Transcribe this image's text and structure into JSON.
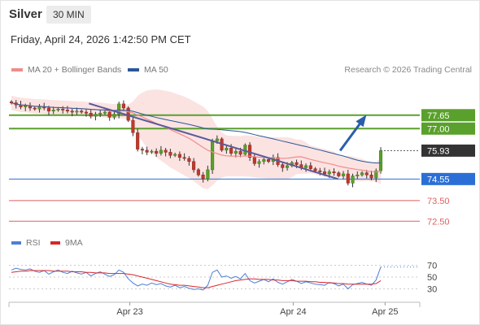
{
  "header": {
    "instrument": "Silver",
    "timeframe": "30 MIN",
    "datetime": "Friday, April 24, 2026 1:42:50 PM CET"
  },
  "legend": {
    "ma20": {
      "label": "MA 20 + Bollinger Bands",
      "color": "#f08c8c"
    },
    "ma50": {
      "label": "MA 50",
      "color": "#2b5797"
    },
    "credit": "Research © 2026 Trading Central"
  },
  "chart_data": [
    {
      "type": "candlestick",
      "ylim": [
        71.8,
        79.3
      ],
      "x_ticks": [
        "Apr 23",
        "Apr 24",
        "Apr 25"
      ],
      "price_levels": [
        {
          "label": "77.65",
          "value": 77.65,
          "style": "resistance",
          "color": "#5aa02c"
        },
        {
          "label": "77.00",
          "value": 77.0,
          "style": "resistance",
          "color": "#5aa02c"
        },
        {
          "label": "75.93",
          "value": 75.93,
          "style": "last",
          "color": "#333333"
        },
        {
          "label": "74.55",
          "value": 74.55,
          "style": "pivot",
          "color": "#2b6fd6"
        },
        {
          "label": "73.50",
          "value": 73.5,
          "style": "support",
          "color": "#e06060"
        },
        {
          "label": "72.50",
          "value": 72.5,
          "style": "support",
          "color": "#e06060"
        }
      ],
      "trendline": {
        "from": [
          0.19,
          78.22
        ],
        "to": [
          0.8,
          74.55
        ]
      },
      "forecast_arrow": {
        "from": [
          0.805,
          75.93
        ],
        "to": [
          0.865,
          77.55
        ]
      },
      "series": [
        {
          "indicator": "ma20",
          "color": "#f08c8c"
        },
        {
          "indicator": "ma50",
          "color": "#2b5797"
        }
      ],
      "close": [
        78.25,
        78.15,
        78.05,
        78.1,
        78.0,
        77.95,
        78.05,
        78.0,
        77.85,
        77.9,
        77.95,
        77.9,
        77.85,
        77.8,
        77.85,
        77.8,
        77.75,
        77.6,
        77.7,
        77.75,
        77.8,
        77.55,
        77.7,
        78.2,
        78.0,
        77.4,
        76.8,
        76.0,
        75.95,
        75.85,
        75.9,
        75.8,
        75.95,
        75.85,
        75.7,
        75.75,
        75.6,
        75.55,
        75.4,
        75.0,
        74.75,
        74.55,
        75.0,
        76.4,
        76.5,
        75.95,
        76.05,
        75.8,
        75.9,
        75.75,
        76.2,
        75.6,
        75.3,
        75.4,
        75.5,
        75.4,
        75.6,
        75.25,
        75.1,
        75.2,
        75.35,
        75.25,
        75.1,
        75.2,
        75.05,
        74.95,
        74.9,
        74.8,
        74.9,
        74.85,
        74.7,
        74.8,
        74.35,
        74.7,
        74.75,
        74.85,
        74.75,
        74.6,
        74.95,
        75.93
      ]
    },
    {
      "type": "line",
      "title": "RSI",
      "ylim": [
        10,
        90
      ],
      "y_ticks": [
        70,
        50,
        30
      ],
      "series": [
        {
          "name": "RSI",
          "color": "#4d7fd6",
          "values": [
            62,
            65,
            63,
            62,
            64,
            60,
            58,
            61,
            55,
            59,
            62,
            58,
            56,
            60,
            57,
            55,
            58,
            52,
            56,
            59,
            55,
            51,
            54,
            62,
            58,
            47,
            40,
            35,
            38,
            36,
            40,
            37,
            39,
            35,
            33,
            36,
            32,
            34,
            31,
            29,
            30,
            28,
            36,
            58,
            62,
            50,
            52,
            48,
            51,
            47,
            56,
            44,
            40,
            43,
            46,
            42,
            47,
            41,
            38,
            42,
            46,
            43,
            39,
            42,
            40,
            38,
            37,
            36,
            41,
            39,
            35,
            38,
            30,
            37,
            39,
            41,
            38,
            36,
            45,
            67
          ]
        },
        {
          "name": "9MA",
          "color": "#d9262c",
          "values": [
            58,
            59,
            60,
            60,
            61,
            61,
            61,
            61,
            61,
            60,
            60,
            60,
            60,
            59,
            59,
            59,
            58,
            58,
            57,
            57,
            57,
            56,
            56,
            56,
            56,
            55,
            54,
            52,
            50,
            48,
            46,
            44,
            42,
            40,
            38,
            37,
            36,
            36,
            35,
            34,
            33,
            32,
            32,
            34,
            36,
            38,
            40,
            42,
            44,
            45,
            46,
            47,
            47,
            46,
            46,
            46,
            45,
            45,
            44,
            44,
            44,
            43,
            43,
            43,
            42,
            42,
            41,
            41,
            40,
            40,
            39,
            39,
            38,
            38,
            38,
            38,
            38,
            38,
            39,
            44
          ]
        }
      ],
      "x_ticks": [
        "Apr 23",
        "Apr 24",
        "Apr 25"
      ]
    }
  ]
}
